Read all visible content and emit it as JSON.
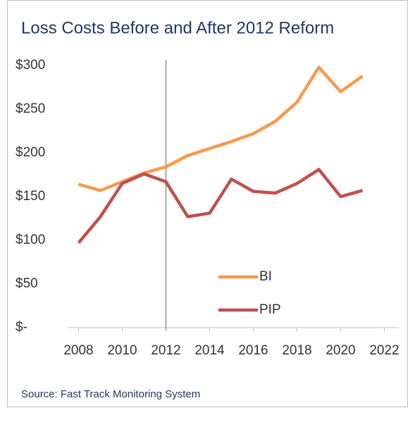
{
  "chart_data": {
    "type": "line",
    "title": "Loss Costs Before and After 2012 Reform",
    "source": "Source: Fast Track Monitoring System",
    "x": [
      2008,
      2009,
      2010,
      2011,
      2012,
      2013,
      2014,
      2015,
      2016,
      2017,
      2018,
      2019,
      2020,
      2021
    ],
    "series": [
      {
        "name": "BI",
        "color": "#f79a4e",
        "values": [
          164,
          157,
          167,
          177,
          184,
          197,
          205,
          213,
          222,
          236,
          258,
          298,
          270,
          288
        ]
      },
      {
        "name": "PIP",
        "color": "#c0504d",
        "values": [
          97,
          127,
          165,
          176,
          167,
          127,
          131,
          170,
          156,
          154,
          165,
          181,
          150,
          157
        ]
      }
    ],
    "xlim": [
      2007.5,
      2022.5
    ],
    "xticks": [
      2008,
      2010,
      2012,
      2014,
      2016,
      2018,
      2020,
      2022
    ],
    "ylim": [
      0,
      300
    ],
    "yticks": [
      {
        "value": 0,
        "label": "$-"
      },
      {
        "value": 50,
        "label": "$50"
      },
      {
        "value": 100,
        "label": "$100"
      },
      {
        "value": 150,
        "label": "$150"
      },
      {
        "value": 200,
        "label": "$200"
      },
      {
        "value": 250,
        "label": "$250"
      },
      {
        "value": 300,
        "label": "$300"
      }
    ],
    "reference_x": 2012,
    "legend": "center",
    "grid": false
  }
}
